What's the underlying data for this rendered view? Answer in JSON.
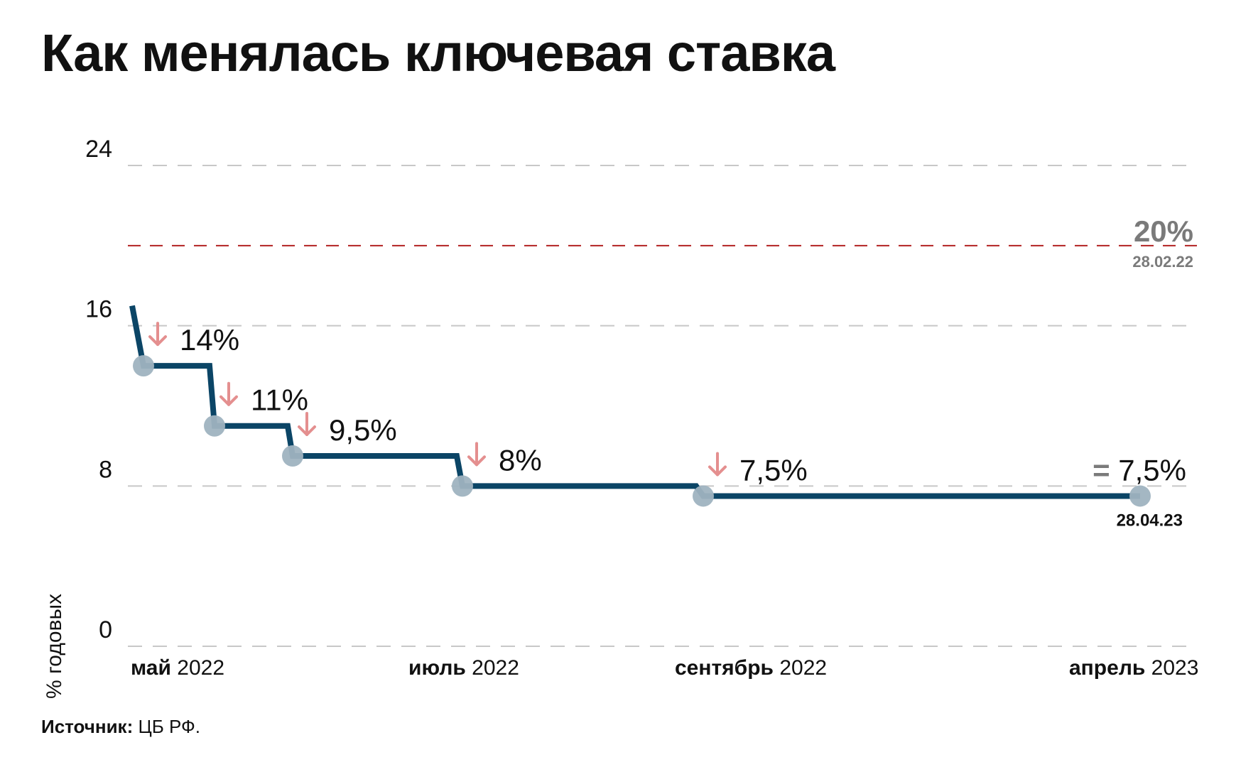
{
  "chart_data": {
    "type": "line",
    "title": "Как менялась ключевая ставка",
    "ylabel": "% годовых",
    "ylim": [
      0,
      24
    ],
    "yticks": [
      0,
      8,
      16,
      24
    ],
    "grid": true,
    "step_line": true,
    "x_tick_labels": [
      {
        "month": "май",
        "year": "2022"
      },
      {
        "month": "июль",
        "year": "2022"
      },
      {
        "month": "сентябрь",
        "year": "2022"
      },
      {
        "month": "апрель",
        "year": "2023"
      }
    ],
    "series": [
      {
        "name": "",
        "start_value": 17,
        "points": [
          {
            "value": 14,
            "label": "14%",
            "change": "down"
          },
          {
            "value": 11,
            "label": "11%",
            "change": "down"
          },
          {
            "value": 9.5,
            "label": "9,5%",
            "change": "down"
          },
          {
            "value": 8,
            "label": "8%",
            "change": "down"
          },
          {
            "value": 7.5,
            "label": "7,5%",
            "change": "down"
          },
          {
            "value": 7.5,
            "label": "= 7,5%",
            "change": "unchanged",
            "date": "28.04.23"
          }
        ]
      }
    ],
    "reference_line": {
      "value": 20,
      "label": "20%",
      "date": "28.02.22",
      "color": "#b22222"
    },
    "source": {
      "label": "Источник:",
      "text": "ЦБ РФ."
    }
  },
  "colors": {
    "line": "#0b4566",
    "marker": "#9fb3c0",
    "arrow": "#e48f8f",
    "grid": "#c8c8c8",
    "reference": "#b22222",
    "muted_text": "#7a7a7a"
  }
}
